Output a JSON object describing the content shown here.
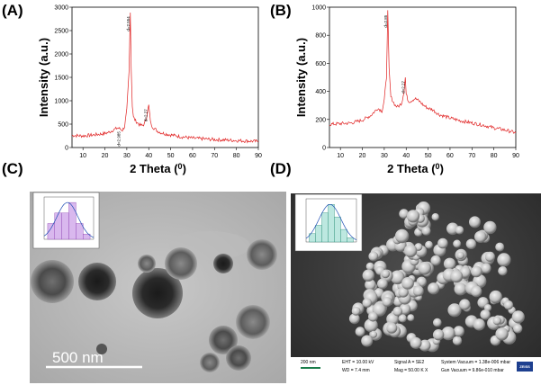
{
  "labels": {
    "a": "(A)",
    "b": "(B)",
    "c": "(C)",
    "d": "(D)"
  },
  "chart_data": [
    {
      "panel": "(A)",
      "type": "line",
      "xlabel": "2 Theta (0)",
      "ylabel": "Intensity (a.u.)",
      "xlim": [
        5,
        90
      ],
      "ylim": [
        0,
        3000
      ],
      "xticks": [
        10,
        20,
        30,
        40,
        50,
        60,
        70,
        80,
        90
      ],
      "yticks": [
        0,
        500,
        1000,
        1500,
        2000,
        2500,
        3000
      ],
      "color": "#e02020",
      "x": [
        5,
        10,
        15,
        20,
        22,
        24,
        26,
        28,
        29,
        30,
        31,
        31.6,
        32,
        32.5,
        33,
        34,
        35,
        36,
        37,
        38,
        39,
        40,
        40.5,
        41,
        42,
        44,
        46,
        48,
        50,
        55,
        60,
        65,
        70,
        75,
        80,
        85,
        90
      ],
      "y": [
        260,
        250,
        270,
        300,
        330,
        380,
        420,
        370,
        450,
        800,
        1600,
        2880,
        1700,
        900,
        650,
        570,
        520,
        480,
        470,
        500,
        650,
        900,
        680,
        500,
        430,
        350,
        310,
        290,
        270,
        230,
        200,
        185,
        170,
        160,
        150,
        140,
        130
      ],
      "annotations": [
        {
          "x": 27.4,
          "y": 420,
          "text": "d=2.985"
        },
        {
          "x": 31.7,
          "y": 2880,
          "text": "d=2.554"
        },
        {
          "x": 39.7,
          "y": 900,
          "text": "d=2.27"
        }
      ]
    },
    {
      "panel": "(B)",
      "type": "line",
      "xlabel": "2 Theta (0)",
      "ylabel": "Intensity (a.u.)",
      "xlim": [
        5,
        90
      ],
      "ylim": [
        0,
        1000
      ],
      "xticks": [
        10,
        20,
        30,
        40,
        50,
        60,
        70,
        80,
        90
      ],
      "yticks": [
        0,
        200,
        400,
        600,
        800,
        1000
      ],
      "color": "#e02020",
      "x": [
        5,
        10,
        15,
        20,
        24,
        27,
        29,
        30,
        31,
        31.6,
        32.2,
        33,
        34,
        35,
        36,
        37,
        38,
        39,
        39.6,
        40,
        41,
        42,
        44,
        46,
        48,
        50,
        52,
        55,
        60,
        65,
        70,
        75,
        80,
        85,
        90
      ],
      "y": [
        165,
        170,
        175,
        195,
        230,
        280,
        260,
        340,
        500,
        970,
        560,
        360,
        330,
        300,
        290,
        300,
        320,
        400,
        500,
        380,
        330,
        330,
        350,
        330,
        300,
        280,
        270,
        235,
        210,
        190,
        175,
        160,
        140,
        125,
        105
      ],
      "annotations": [
        {
          "x": 31.7,
          "y": 970,
          "text": "d=2.85"
        },
        {
          "x": 39.7,
          "y": 500,
          "text": "d=2.27"
        }
      ]
    }
  ],
  "tem": {
    "scale_bar_label": "500  nm",
    "histogram": {
      "values": [
        3,
        5,
        5,
        7,
        3,
        1
      ]
    }
  },
  "sem": {
    "histogram": {
      "values": [
        2,
        4,
        7,
        9,
        6,
        3,
        1
      ]
    },
    "info": {
      "scale": "200 nm",
      "eht": "EHT = 10.00 kV",
      "wd": "WD = 7.4 mm",
      "signal": "Signal A = SE2",
      "mag": "Mag = 50.00 K X",
      "sysvac": "System Vacuum = 1.38e-006 mbar",
      "gunvac": "Gun Vacuum = 9.86e-010 mbar",
      "brand": "ZEISS"
    }
  }
}
